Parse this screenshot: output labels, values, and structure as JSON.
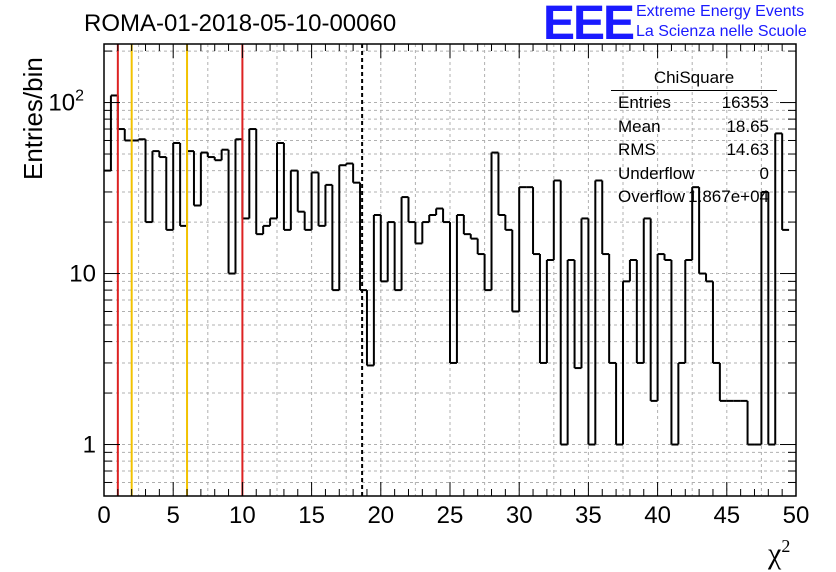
{
  "header": {
    "title": "ROMA-01-2018-05-10-00060",
    "logo_text": "EEE",
    "logo_line1": "Extreme Energy Events",
    "logo_line2": "La Scienza nelle Scuole"
  },
  "stats_box": {
    "name": "ChiSquare",
    "rows": [
      {
        "key": "Entries",
        "value": "16353"
      },
      {
        "key": "Mean",
        "value": "18.65"
      },
      {
        "key": "RMS",
        "value": "14.63"
      },
      {
        "key": "Underflow",
        "value": "0"
      },
      {
        "key": "Overflow",
        "value": "1.867e+04"
      }
    ]
  },
  "chart_data": {
    "type": "histogram",
    "title": "ROMA-01-2018-05-10-00060",
    "xlabel": "χ",
    "xlabel_sup": "2",
    "ylabel": "Entries/bin",
    "xlim": [
      0,
      50
    ],
    "ylim": [
      0.5,
      220
    ],
    "yscale": "log",
    "grid": true,
    "bin_width": 0.5,
    "line_color": "#000000",
    "x_ticks": [
      0,
      5,
      10,
      15,
      20,
      25,
      30,
      35,
      40,
      45,
      50
    ],
    "x_tick_labels": [
      "0",
      "5",
      "10",
      "15",
      "20",
      "25",
      "30",
      "35",
      "40",
      "45",
      "50"
    ],
    "y_tick_labels": [
      {
        "value": 1,
        "base": "1",
        "exp": ""
      },
      {
        "value": 10,
        "base": "10",
        "exp": ""
      },
      {
        "value": 100,
        "base": "10",
        "exp": "2"
      }
    ],
    "values": [
      40,
      110,
      70,
      60,
      60,
      61,
      20,
      52,
      48,
      18,
      58,
      19,
      52,
      25,
      51,
      48,
      46,
      53,
      10,
      61,
      21,
      70,
      17,
      19,
      21,
      58,
      18,
      40,
      23,
      18,
      39,
      19,
      33,
      8,
      43,
      44,
      34,
      8,
      2.9,
      22,
      9,
      20,
      8,
      28,
      20,
      15,
      20,
      22,
      24,
      20,
      3,
      22,
      17,
      16,
      13,
      8,
      51,
      22,
      18,
      6,
      32,
      32,
      13,
      3,
      12,
      35,
      1,
      12,
      2.8,
      21,
      1,
      35,
      13,
      3,
      1,
      9,
      12,
      3,
      21,
      1.8,
      13,
      12,
      1,
      3,
      12,
      32,
      10,
      9,
      3,
      1.8,
      1.8,
      1.8,
      1.8,
      1,
      1,
      30,
      1,
      66,
      18
    ],
    "vlines": [
      {
        "x": 1,
        "color": "#dd2222",
        "style": "solid"
      },
      {
        "x": 2,
        "color": "#f2c200",
        "style": "solid"
      },
      {
        "x": 6,
        "color": "#f2c200",
        "style": "solid"
      },
      {
        "x": 10,
        "color": "#dd2222",
        "style": "solid"
      },
      {
        "x": 18.65,
        "color": "#000000",
        "style": "dashed"
      }
    ]
  }
}
